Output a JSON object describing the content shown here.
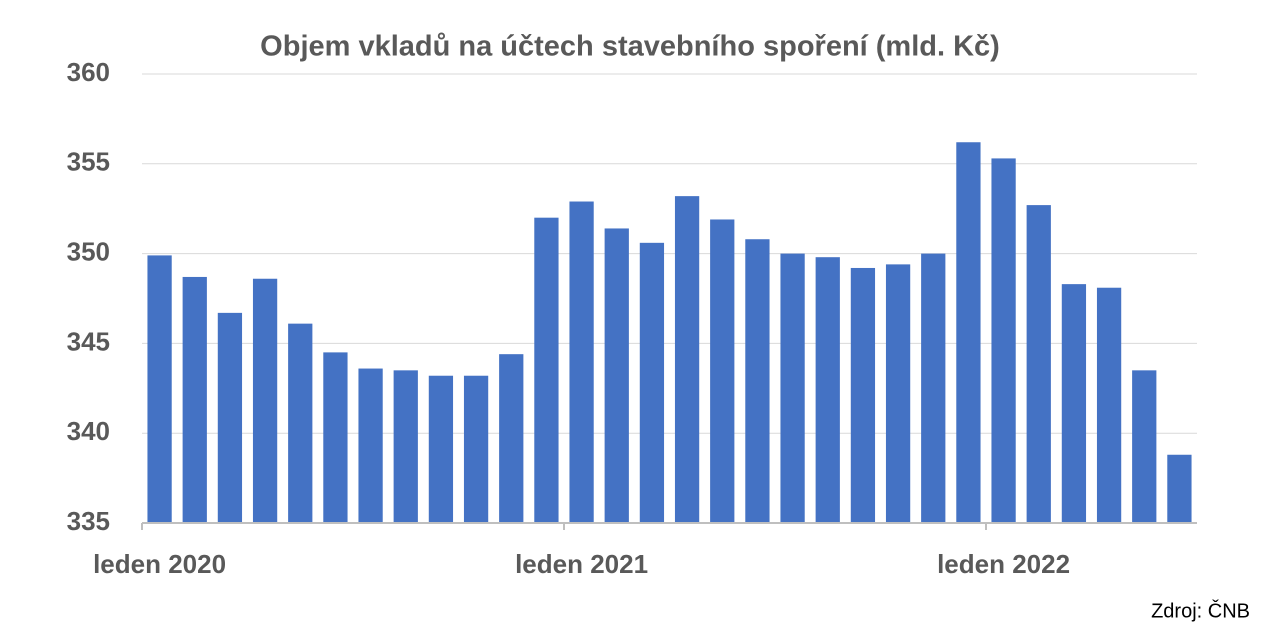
{
  "chart_data": {
    "type": "bar",
    "title": "Objem vkladů na účtech stavebního spoření (mld. Kč)",
    "source": "Zdroj: ČNB",
    "categories": [
      "leden 2020",
      null,
      null,
      null,
      null,
      null,
      null,
      null,
      null,
      null,
      null,
      null,
      "leden 2021",
      null,
      null,
      null,
      null,
      null,
      null,
      null,
      null,
      null,
      null,
      null,
      "leden 2022",
      null,
      null,
      null,
      null,
      null
    ],
    "values": [
      349.9,
      348.7,
      346.7,
      348.6,
      346.1,
      344.5,
      343.6,
      343.5,
      343.2,
      343.2,
      344.4,
      352.0,
      352.9,
      351.4,
      350.6,
      353.2,
      351.9,
      350.8,
      350.0,
      349.8,
      349.2,
      349.4,
      350.0,
      356.2,
      355.3,
      352.7,
      348.3,
      348.1,
      343.5,
      338.8
    ],
    "color": "#4472c4",
    "ylim": [
      335,
      360
    ],
    "yticks": [
      335,
      340,
      345,
      350,
      355,
      360
    ],
    "grid": true
  }
}
